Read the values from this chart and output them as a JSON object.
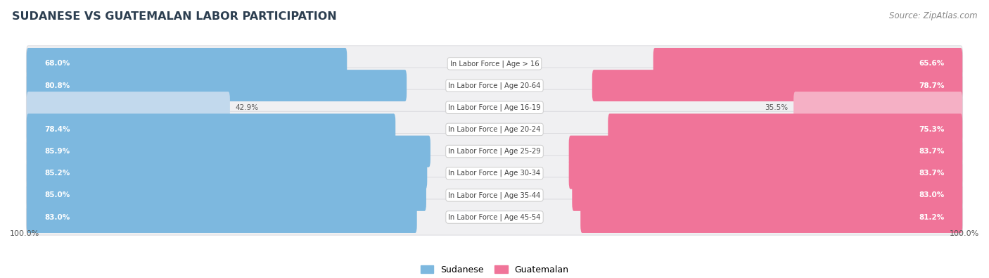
{
  "title": "SUDANESE VS GUATEMALAN LABOR PARTICIPATION",
  "source": "Source: ZipAtlas.com",
  "categories": [
    "In Labor Force | Age > 16",
    "In Labor Force | Age 20-64",
    "In Labor Force | Age 16-19",
    "In Labor Force | Age 20-24",
    "In Labor Force | Age 25-29",
    "In Labor Force | Age 30-34",
    "In Labor Force | Age 35-44",
    "In Labor Force | Age 45-54"
  ],
  "sudanese": [
    68.0,
    80.8,
    42.9,
    78.4,
    85.9,
    85.2,
    85.0,
    83.0
  ],
  "guatemalan": [
    65.6,
    78.7,
    35.5,
    75.3,
    83.7,
    83.7,
    83.0,
    81.2
  ],
  "sudanese_color": "#7db8df",
  "sudanese_color_light": "#c2d9ed",
  "guatemalan_color": "#f07499",
  "guatemalan_color_light": "#f5b0c5",
  "row_bg_color": "#f0f0f2",
  "row_edge_color": "#dcdce0",
  "max_val": 100.0,
  "legend_labels": [
    "Sudanese",
    "Guatemalan"
  ],
  "title_color": "#2c3e50",
  "source_color": "#888888",
  "label_color_dark": "#555555",
  "label_color_white": "#ffffff"
}
